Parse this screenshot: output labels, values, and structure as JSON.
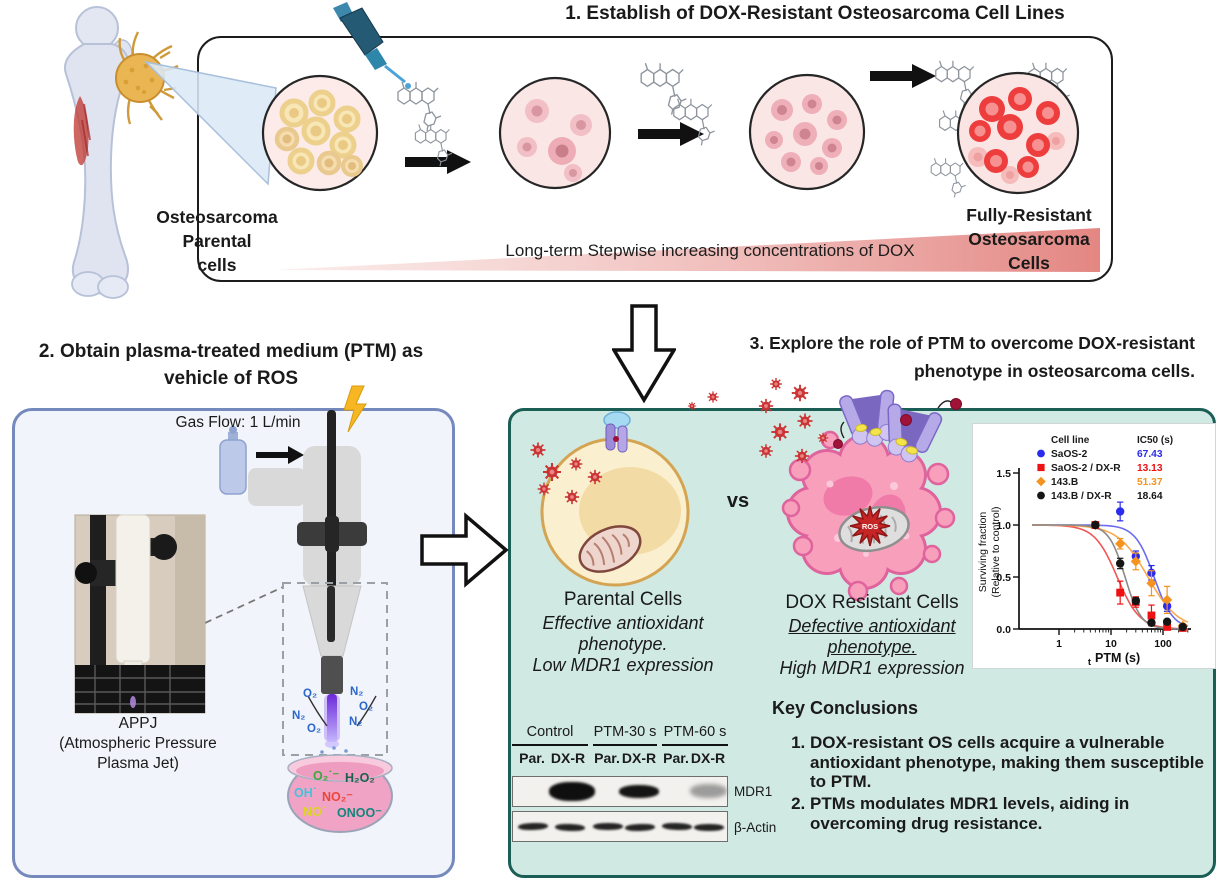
{
  "panel1": {
    "title": "1.  Establish of DOX-Resistant Osteosarcoma Cell Lines",
    "parental_label": [
      "Osteosarcoma",
      "Parental",
      "cells"
    ],
    "gradient_label": "Long-term Stepwise increasing concentrations of DOX",
    "resistant_label": [
      "Fully-Resistant",
      "Osteosarcoma",
      "Cells"
    ]
  },
  "panel2": {
    "title_line1": "2. Obtain plasma-treated medium (PTM) as",
    "title_line2": "vehicle of ROS",
    "gas_flow_label": "Gas Flow: 1 L/min",
    "appj_label": [
      "APPJ",
      "(Atmospheric Pressure",
      "Plasma Jet)"
    ],
    "jet_species_left": [
      "O₂",
      "N₂",
      "O₂"
    ],
    "jet_species_right": [
      "N₂",
      "O₂",
      "N₂"
    ],
    "dish_species": [
      {
        "label": "O₂˙⁻",
        "color": "#3aa83c"
      },
      {
        "label": "H₂O₂",
        "color": "#20604b"
      },
      {
        "label": "OH˙",
        "color": "#45c2d8"
      },
      {
        "label": "NO₂⁻",
        "color": "#ea4739"
      },
      {
        "label": "NO˙",
        "color": "#ddd525"
      },
      {
        "label": "ONOO⁻",
        "color": "#15857b"
      }
    ]
  },
  "panel3": {
    "title_line1": "3. Explore the role of PTM to overcome DOX-resistant",
    "title_line2": "phenotype in osteosarcoma cells.",
    "vs_label": "vs",
    "parental_name": "Parental Cells",
    "parental_desc": [
      "Effective antioxidant",
      "phenotype.",
      "Low MDR1 expression"
    ],
    "resistant_name": "DOX Resistant Cells",
    "resistant_desc_underlined": [
      "Defective antioxidant",
      "phenotype."
    ],
    "resistant_desc_plain": "High MDR1 expression",
    "ros_label": "ROS",
    "blot": {
      "groups": [
        "Control",
        "PTM-30 s",
        "PTM-60 s"
      ],
      "lanes": [
        "Par.",
        "DX-R",
        "Par.",
        "DX-R",
        "Par.",
        "DX-R"
      ],
      "row_labels": [
        "MDR1",
        "β-Actin"
      ]
    },
    "conclusions": {
      "title": "Key Conclusions",
      "items": [
        "DOX-resistant OS cells acquire a vulnerable antioxidant phenotype, making them susceptible to PTM.",
        "PTMs modulates MDR1 levels, aiding in overcoming drug resistance."
      ]
    }
  },
  "colors": {
    "panel1_border": "#1c1c1c",
    "panel2_border": "#7589bd",
    "panel2_bg": "#f1f4fa",
    "panel3_border": "#1b5e55",
    "panel3_bg": "#d0e9e2",
    "dox_gradient_start": "#f7ddda",
    "dox_gradient_end": "#e2807c"
  },
  "chart_data": {
    "type": "scatter",
    "x_scale": "log",
    "xlabel": "t PTM (s)",
    "ylabel_lines": [
      "Surviving fraction",
      "(Relative to control)"
    ],
    "xlim": [
      0.2,
      350
    ],
    "ylim": [
      0,
      1.6
    ],
    "xticks": [
      1,
      10,
      100
    ],
    "yticks": [
      0.0,
      0.5,
      1.0,
      1.5
    ],
    "grid": false,
    "legend_position": "top",
    "legend_headers": [
      "Cell line",
      "IC50 (s)"
    ],
    "series": [
      {
        "name": "SaOS-2",
        "ic50": "67.43",
        "color": "#2b2bee",
        "line_color": "#6b6bf0",
        "marker": "circle",
        "hill": 2.4,
        "x": [
          5,
          15,
          30,
          60,
          120,
          240
        ],
        "y": [
          1.0,
          1.13,
          0.7,
          0.54,
          0.22,
          0.02
        ],
        "err": [
          0.02,
          0.09,
          0.05,
          0.07,
          0.05,
          0.01
        ]
      },
      {
        "name": "SaOS-2 / DX-R",
        "ic50": "13.13",
        "color": "#ee1111",
        "line_color": "#f25555",
        "marker": "square",
        "hill": 2.0,
        "x": [
          5,
          15,
          30,
          60,
          120,
          240
        ],
        "y": [
          1.0,
          0.35,
          0.26,
          0.13,
          0.02,
          0.01
        ],
        "err": [
          0.02,
          0.11,
          0.05,
          0.1,
          0.01,
          0.0
        ]
      },
      {
        "name": "143.B",
        "ic50": "51.37",
        "color": "#f6921e",
        "line_color": "#f8a94e",
        "marker": "diamond",
        "hill": 1.5,
        "x": [
          5,
          15,
          30,
          60,
          120,
          240
        ],
        "y": [
          1.0,
          0.82,
          0.65,
          0.44,
          0.28,
          0.03
        ],
        "err": [
          0.02,
          0.05,
          0.08,
          0.12,
          0.13,
          0.02
        ]
      },
      {
        "name": "143.B / DX-R",
        "ic50": "18.64",
        "color": "#151515",
        "line_color": "#8a8a8a",
        "marker": "circle",
        "hill": 2.8,
        "x": [
          5,
          15,
          30,
          60,
          120,
          240
        ],
        "y": [
          1.0,
          0.63,
          0.27,
          0.06,
          0.07,
          0.02
        ],
        "err": [
          0.02,
          0.05,
          0.03,
          0.02,
          0.02,
          0.0
        ]
      }
    ]
  }
}
